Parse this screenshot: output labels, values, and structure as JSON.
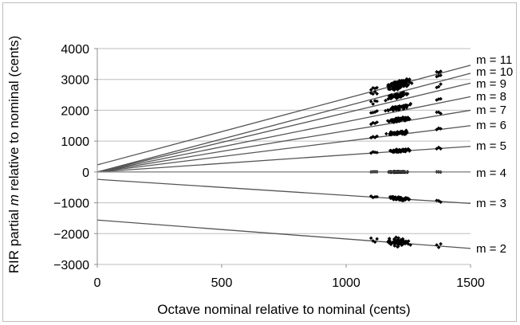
{
  "chart_data": {
    "type": "scatter",
    "title": "",
    "xlabel": "Octave nominal relative to nominal (cents)",
    "ylabel_prefix": "RIR partial ",
    "ylabel_var": "m",
    "ylabel_suffix": " relative to nominal (cents)",
    "xlim": [
      0,
      1500
    ],
    "ylim": [
      -3000,
      4000
    ],
    "xticks": [
      0,
      500,
      1000,
      1500
    ],
    "yticks": [
      4000,
      3000,
      2000,
      1000,
      0,
      -1000,
      -2000,
      -3000
    ],
    "xtick_labels": [
      "0",
      "500",
      "1000",
      "1500"
    ],
    "ytick_labels": [
      "4000",
      "3000",
      "2000",
      "1000",
      "0",
      "−1000",
      "−2000",
      "−3000"
    ],
    "grid": "horizontal",
    "point_color": "#000000",
    "line_color": "#555555",
    "scatter_x_range": [
      1100,
      1380
    ],
    "series": [
      {
        "label": "m = 11",
        "line": [
          [
            0,
            230
          ],
          [
            1500,
            3460
          ]
        ],
        "center": 2980,
        "spread": 90
      },
      {
        "label": "m = 10",
        "line": [
          [
            0,
            0
          ],
          [
            1500,
            3200
          ]
        ],
        "center": 2850,
        "spread": 90
      },
      {
        "label": "m = 9",
        "line": [
          [
            0,
            0
          ],
          [
            1500,
            2880
          ]
        ],
        "center": 2550,
        "spread": 100
      },
      {
        "label": "m = 8",
        "line": [
          [
            0,
            0
          ],
          [
            1500,
            2440
          ]
        ],
        "center": 2150,
        "spread": 100
      },
      {
        "label": "m = 7",
        "line": [
          [
            0,
            0
          ],
          [
            1500,
            2000
          ]
        ],
        "center": 1750,
        "spread": 90
      },
      {
        "label": "m = 6",
        "line": [
          [
            0,
            0
          ],
          [
            1500,
            1500
          ]
        ],
        "center": 1300,
        "spread": 80
      },
      {
        "label": "m = 5",
        "line": [
          [
            0,
            0
          ],
          [
            1500,
            830
          ]
        ],
        "center": 700,
        "spread": 70
      },
      {
        "label": "m = 4",
        "line": [
          [
            0,
            0
          ],
          [
            1500,
            0
          ]
        ],
        "center": 0,
        "spread": 15
      },
      {
        "label": "m = 3",
        "line": [
          [
            0,
            -240
          ],
          [
            1500,
            -1020
          ]
        ],
        "center": -880,
        "spread": 70
      },
      {
        "label": "m = 2",
        "line": [
          [
            0,
            -1560
          ],
          [
            1500,
            -2480
          ]
        ],
        "center": -2300,
        "spread": 180
      }
    ]
  }
}
